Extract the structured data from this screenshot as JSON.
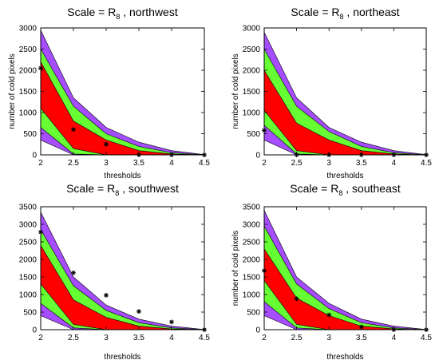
{
  "colors": {
    "outer_band": "#A64DFF",
    "middle_band": "#66FF33",
    "inner_band": "#FF0000",
    "marker": "#000000",
    "axes": "#000000"
  },
  "chart_data": [
    {
      "type": "area",
      "title_prefix": "Scale = R",
      "title_subscript": "8",
      "title_suffix": " , northwest",
      "xlabel": "thresholds",
      "ylabel": "number of cold pixels",
      "xlim": [
        2,
        4.5
      ],
      "ylim": [
        0,
        3000
      ],
      "xticks": [
        "2",
        "2.5",
        "3",
        "3.5",
        "4",
        "4.5"
      ],
      "yticks": [
        "0",
        "500",
        "1000",
        "1500",
        "2000",
        "2500",
        "3000"
      ],
      "x": [
        2,
        2.5,
        3,
        3.5,
        4,
        4.5
      ],
      "bands": [
        {
          "band": "outer",
          "upper": [
            2950,
            1350,
            650,
            300,
            100,
            5
          ],
          "lower": [
            350,
            0,
            0,
            0,
            0,
            0
          ]
        },
        {
          "band": "middle",
          "upper": [
            2500,
            1150,
            500,
            200,
            50,
            0
          ],
          "lower": [
            650,
            20,
            0,
            0,
            0,
            0
          ]
        },
        {
          "band": "inner",
          "upper": [
            2200,
            800,
            350,
            100,
            20,
            0
          ],
          "lower": [
            1100,
            150,
            0,
            0,
            0,
            0
          ]
        }
      ],
      "markers": [
        [
          2,
          2050
        ],
        [
          2.5,
          600
        ],
        [
          3,
          250
        ],
        [
          3.5,
          0
        ],
        [
          4,
          0
        ],
        [
          4.5,
          0
        ]
      ]
    },
    {
      "type": "area",
      "title_prefix": "Scale = R",
      "title_subscript": "8",
      "title_suffix": " , northeast",
      "xlabel": "thresholds",
      "ylabel": "number of cold pixels",
      "xlim": [
        2,
        4.5
      ],
      "ylim": [
        0,
        3000
      ],
      "xticks": [
        "2",
        "2.5",
        "3",
        "3.5",
        "4",
        "4.5"
      ],
      "yticks": [
        "0",
        "500",
        "1000",
        "1500",
        "2000",
        "2500",
        "3000"
      ],
      "x": [
        2,
        2.5,
        3,
        3.5,
        4,
        4.5
      ],
      "bands": [
        {
          "band": "outer",
          "upper": [
            2900,
            1350,
            650,
            300,
            100,
            5
          ],
          "lower": [
            350,
            0,
            0,
            0,
            0,
            0
          ]
        },
        {
          "band": "middle",
          "upper": [
            2500,
            1150,
            550,
            200,
            50,
            0
          ],
          "lower": [
            700,
            20,
            0,
            0,
            0,
            0
          ]
        },
        {
          "band": "inner",
          "upper": [
            2000,
            750,
            350,
            100,
            20,
            0
          ],
          "lower": [
            1050,
            100,
            0,
            0,
            0,
            0
          ]
        }
      ],
      "markers": [
        [
          2,
          580
        ],
        [
          2.5,
          0
        ],
        [
          3,
          0
        ],
        [
          3.5,
          0
        ],
        [
          4,
          0
        ],
        [
          4.5,
          0
        ]
      ]
    },
    {
      "type": "area",
      "title_prefix": "Scale = R",
      "title_subscript": "8",
      "title_suffix": " , southwest",
      "xlabel": "thresholds",
      "ylabel": "",
      "xlim": [
        2,
        4.5
      ],
      "ylim": [
        0,
        3500
      ],
      "xticks": [
        "2",
        "2.5",
        "3",
        "3.5",
        "4",
        "4.5"
      ],
      "yticks": [
        "0",
        "500",
        "1000",
        "1500",
        "2000",
        "2500",
        "3000",
        "3500"
      ],
      "x": [
        2,
        2.5,
        3,
        3.5,
        4,
        4.5
      ],
      "bands": [
        {
          "band": "outer",
          "upper": [
            3350,
            1500,
            700,
            300,
            100,
            5
          ],
          "lower": [
            400,
            0,
            0,
            0,
            0,
            0
          ]
        },
        {
          "band": "middle",
          "upper": [
            2850,
            1250,
            550,
            200,
            50,
            0
          ],
          "lower": [
            750,
            50,
            0,
            0,
            0,
            0
          ]
        },
        {
          "band": "inner",
          "upper": [
            2400,
            850,
            350,
            100,
            20,
            0
          ],
          "lower": [
            1300,
            150,
            0,
            0,
            0,
            0
          ]
        }
      ],
      "markers": [
        [
          2,
          2780
        ],
        [
          2.5,
          1620
        ],
        [
          3,
          980
        ],
        [
          3.5,
          520
        ],
        [
          4,
          220
        ],
        [
          4.5,
          0
        ]
      ]
    },
    {
      "type": "area",
      "title_prefix": "Scale = R",
      "title_subscript": "8",
      "title_suffix": " , southeast",
      "xlabel": "thresholds",
      "ylabel": "number of cold pixels",
      "xlim": [
        2,
        4.5
      ],
      "ylim": [
        0,
        3500
      ],
      "xticks": [
        "2",
        "2.5",
        "3",
        "3.5",
        "4",
        "4.5"
      ],
      "yticks": [
        "0",
        "500",
        "1000",
        "1500",
        "2000",
        "2500",
        "3000",
        "3500"
      ],
      "x": [
        2,
        2.5,
        3,
        3.5,
        4,
        4.5
      ],
      "bands": [
        {
          "band": "outer",
          "upper": [
            3400,
            1500,
            750,
            300,
            100,
            5
          ],
          "lower": [
            400,
            0,
            0,
            0,
            0,
            0
          ]
        },
        {
          "band": "middle",
          "upper": [
            2950,
            1300,
            600,
            200,
            50,
            0
          ],
          "lower": [
            800,
            50,
            0,
            0,
            0,
            0
          ]
        },
        {
          "band": "inner",
          "upper": [
            2300,
            900,
            400,
            100,
            20,
            0
          ],
          "lower": [
            1400,
            150,
            0,
            0,
            0,
            0
          ]
        }
      ],
      "markers": [
        [
          2,
          1680
        ],
        [
          2.5,
          880
        ],
        [
          3,
          420
        ],
        [
          3.5,
          80
        ],
        [
          4,
          0
        ],
        [
          4.5,
          0
        ]
      ]
    }
  ]
}
